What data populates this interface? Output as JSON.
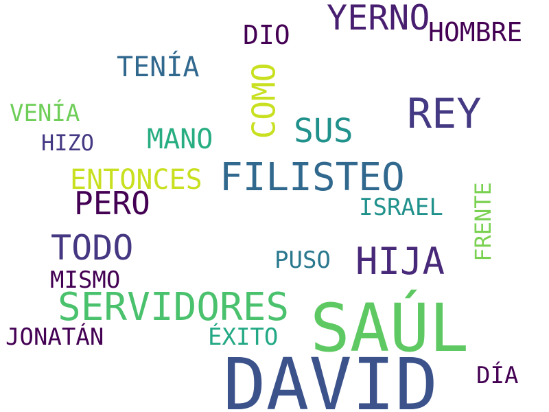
{
  "words": [
    {
      "id": "david",
      "text": "DAVID",
      "color": "#3b528b"
    },
    {
      "id": "saul",
      "text": "SAÚL",
      "color": "#5ec962"
    },
    {
      "id": "servidores",
      "text": "SERVIDORES",
      "color": "#4ac16d"
    },
    {
      "id": "filisteo",
      "text": "FILISTEO",
      "color": "#31688e"
    },
    {
      "id": "rey",
      "text": "REY",
      "color": "#443983"
    },
    {
      "id": "hija",
      "text": "HIJA",
      "color": "#482878"
    },
    {
      "id": "todo",
      "text": "TODO",
      "color": "#453781"
    },
    {
      "id": "yerno",
      "text": "YERNO",
      "color": "#481f70"
    },
    {
      "id": "pero",
      "text": "PERO",
      "color": "#440154"
    },
    {
      "id": "sus",
      "text": "SUS",
      "color": "#21918c"
    },
    {
      "id": "como",
      "text": "COMO",
      "color": "#c8e020"
    },
    {
      "id": "entonces",
      "text": "ENTONCES",
      "color": "#c8e020"
    },
    {
      "id": "mano",
      "text": "MANO",
      "color": "#27ad81"
    },
    {
      "id": "tenia",
      "text": "TENÍA",
      "color": "#31688e"
    },
    {
      "id": "hombre",
      "text": "HOMBRE",
      "color": "#440154"
    },
    {
      "id": "dio",
      "text": "DIO",
      "color": "#440154"
    },
    {
      "id": "israel",
      "text": "ISRAEL",
      "color": "#21918c"
    },
    {
      "id": "frente",
      "text": "FRENTE",
      "color": "#7ad151"
    },
    {
      "id": "puso",
      "text": "PUSO",
      "color": "#2a788e"
    },
    {
      "id": "mismo",
      "text": "MISMO",
      "color": "#440154"
    },
    {
      "id": "jonatan",
      "text": "JONATÁN",
      "color": "#440154"
    },
    {
      "id": "exito",
      "text": "ÉXITO",
      "color": "#22a884"
    },
    {
      "id": "dia",
      "text": "DÍA",
      "color": "#440154"
    },
    {
      "id": "venia",
      "text": "VENÍA",
      "color": "#6ece58"
    },
    {
      "id": "hizo",
      "text": "HIZO",
      "color": "#443983"
    }
  ]
}
